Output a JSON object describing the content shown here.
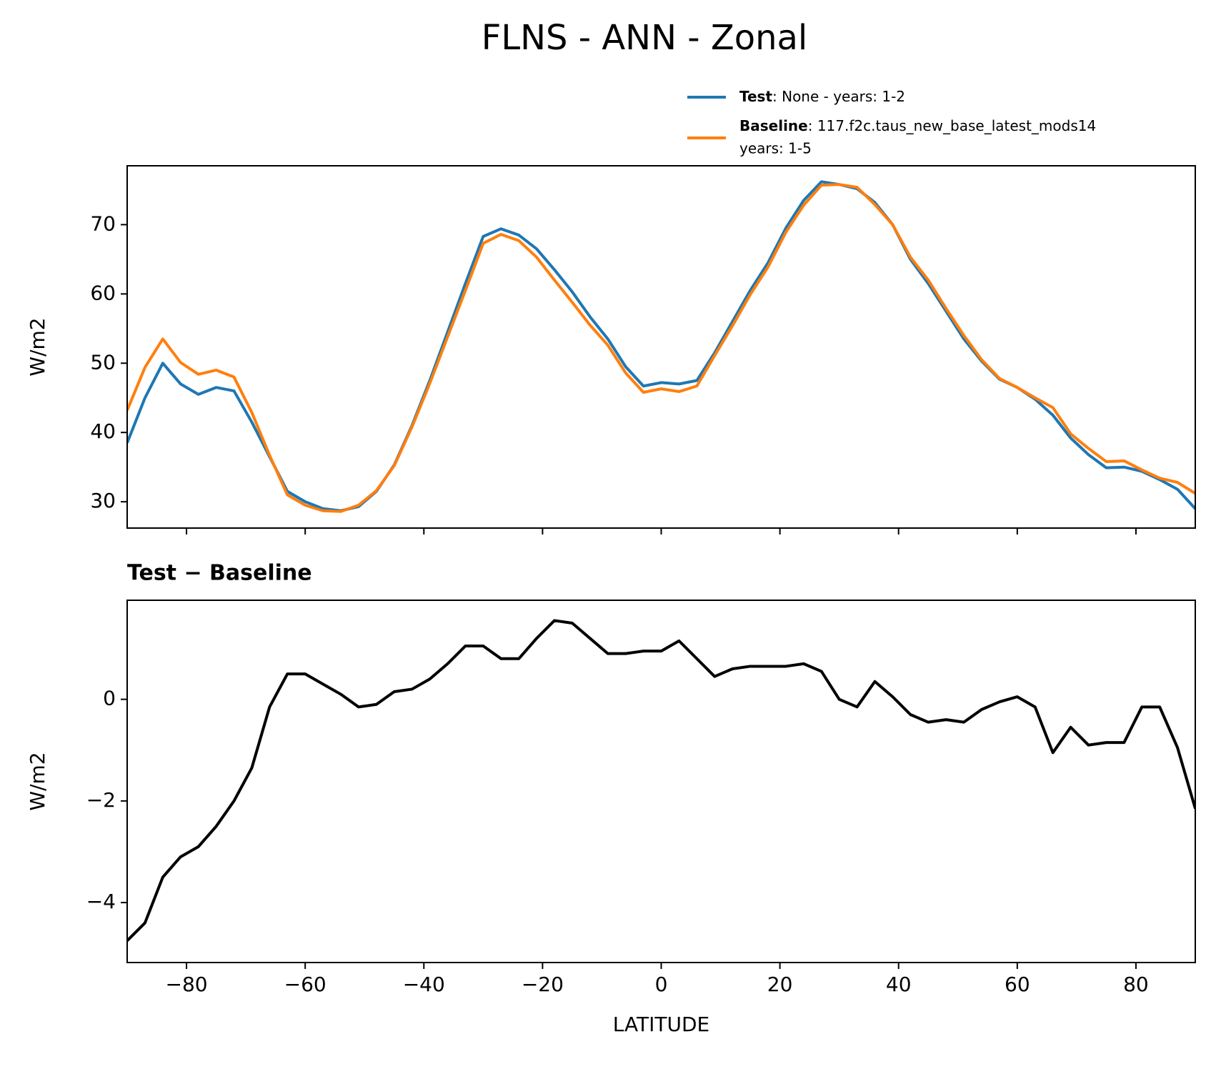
{
  "title": "FLNS - ANN - Zonal",
  "chart_data": [
    {
      "type": "line",
      "ylabel": "W/m2",
      "x": [
        -90,
        -87,
        -84,
        -81,
        -78,
        -75,
        -72,
        -69,
        -66,
        -63,
        -60,
        -57,
        -54,
        -51,
        -48,
        -45,
        -42,
        -39,
        -36,
        -33,
        -30,
        -27,
        -24,
        -21,
        -18,
        -15,
        -12,
        -9,
        -6,
        -3,
        0,
        3,
        6,
        9,
        12,
        15,
        18,
        21,
        24,
        27,
        30,
        33,
        36,
        39,
        42,
        45,
        48,
        51,
        54,
        57,
        60,
        63,
        66,
        69,
        72,
        75,
        78,
        81,
        84,
        87,
        90
      ],
      "series": [
        {
          "name": "Test",
          "description": [
            ": None - years: 1-2"
          ],
          "color": "#1f77b4",
          "values": [
            38.5,
            45.0,
            50.0,
            47.0,
            45.5,
            46.5,
            46.0,
            41.5,
            36.5,
            31.5,
            30.0,
            29.0,
            28.7,
            29.3,
            31.5,
            35.3,
            41.0,
            47.5,
            54.5,
            61.5,
            68.3,
            69.4,
            68.5,
            66.5,
            63.5,
            60.3,
            56.7,
            53.5,
            49.5,
            46.7,
            47.2,
            47.0,
            47.5,
            51.5,
            56.0,
            60.5,
            64.5,
            69.5,
            73.5,
            76.2,
            75.8,
            75.2,
            73.2,
            70.0,
            65.0,
            61.5,
            57.5,
            53.5,
            50.3,
            47.7,
            46.5,
            44.8,
            42.5,
            39.2,
            36.8,
            34.9,
            35.0,
            34.4,
            33.2,
            31.8,
            29.0
          ]
        },
        {
          "name": "Baseline",
          "description": [
            ": 117.f2c.taus_new_base_latest_mods14",
            "years: 1-5"
          ],
          "color": "#ff7f0e",
          "values": [
            43.2,
            49.4,
            53.5,
            50.1,
            48.4,
            49.0,
            48.0,
            42.9,
            36.7,
            31.0,
            29.5,
            28.7,
            28.6,
            29.5,
            31.6,
            35.2,
            40.8,
            47.1,
            53.8,
            60.5,
            67.3,
            68.6,
            67.7,
            65.3,
            62.0,
            58.8,
            55.5,
            52.6,
            48.6,
            45.8,
            46.3,
            45.9,
            46.7,
            51.1,
            55.4,
            59.9,
            63.9,
            68.9,
            72.8,
            75.7,
            75.8,
            75.4,
            72.9,
            70.0,
            65.3,
            62.0,
            57.9,
            54.0,
            50.5,
            47.8,
            46.5,
            45.0,
            43.6,
            39.8,
            37.7,
            35.8,
            35.9,
            34.6,
            33.4,
            32.8,
            31.2
          ]
        }
      ],
      "xlim": [
        -90,
        90
      ],
      "xticks": [
        -80,
        -60,
        -40,
        -20,
        0,
        20,
        40,
        60,
        80
      ],
      "xtick_labels": false,
      "ylim": [
        26.2,
        78.5
      ],
      "yticks": [
        30,
        40,
        50,
        60,
        70
      ],
      "legend": "upper right"
    },
    {
      "type": "line",
      "title": "Test − Baseline",
      "xlabel": "LATITUDE",
      "ylabel": "W/m2",
      "x": [
        -90,
        -87,
        -84,
        -81,
        -78,
        -75,
        -72,
        -69,
        -66,
        -63,
        -60,
        -57,
        -54,
        -51,
        -48,
        -45,
        -42,
        -39,
        -36,
        -33,
        -30,
        -27,
        -24,
        -21,
        -18,
        -15,
        -12,
        -9,
        -6,
        -3,
        0,
        3,
        6,
        9,
        12,
        15,
        18,
        21,
        24,
        27,
        30,
        33,
        36,
        39,
        42,
        45,
        48,
        51,
        54,
        57,
        60,
        63,
        66,
        69,
        72,
        75,
        78,
        81,
        84,
        87,
        90
      ],
      "series": [
        {
          "color": "#000000",
          "values": [
            -4.75,
            -4.4,
            -3.5,
            -3.1,
            -2.9,
            -2.5,
            -2.0,
            -1.35,
            -0.15,
            0.5,
            0.5,
            0.3,
            0.1,
            -0.15,
            -0.1,
            0.15,
            0.2,
            0.4,
            0.7,
            1.05,
            1.05,
            0.8,
            0.8,
            1.2,
            1.55,
            1.5,
            1.2,
            0.9,
            0.9,
            0.95,
            0.95,
            1.15,
            0.8,
            0.45,
            0.6,
            0.65,
            0.65,
            0.65,
            0.7,
            0.55,
            0.0,
            -0.15,
            0.35,
            0.05,
            -0.3,
            -0.45,
            -0.4,
            -0.45,
            -0.2,
            -0.05,
            0.05,
            -0.15,
            -1.05,
            -0.55,
            -0.9,
            -0.85,
            -0.85,
            -0.15,
            -0.15,
            -0.95,
            -2.15
          ]
        }
      ],
      "xlim": [
        -90,
        90
      ],
      "xticks": [
        {
          "value": -80,
          "label": "−80"
        },
        {
          "value": -60,
          "label": "−60"
        },
        {
          "value": -40,
          "label": "−40"
        },
        {
          "value": -20,
          "label": "−20"
        },
        0,
        20,
        40,
        60,
        80
      ],
      "xtick_labels": true,
      "ylim": [
        -5.18,
        1.95
      ],
      "yticks": [
        {
          "value": -4,
          "label": "−4"
        },
        {
          "value": -2,
          "label": "−2"
        },
        0
      ]
    }
  ]
}
